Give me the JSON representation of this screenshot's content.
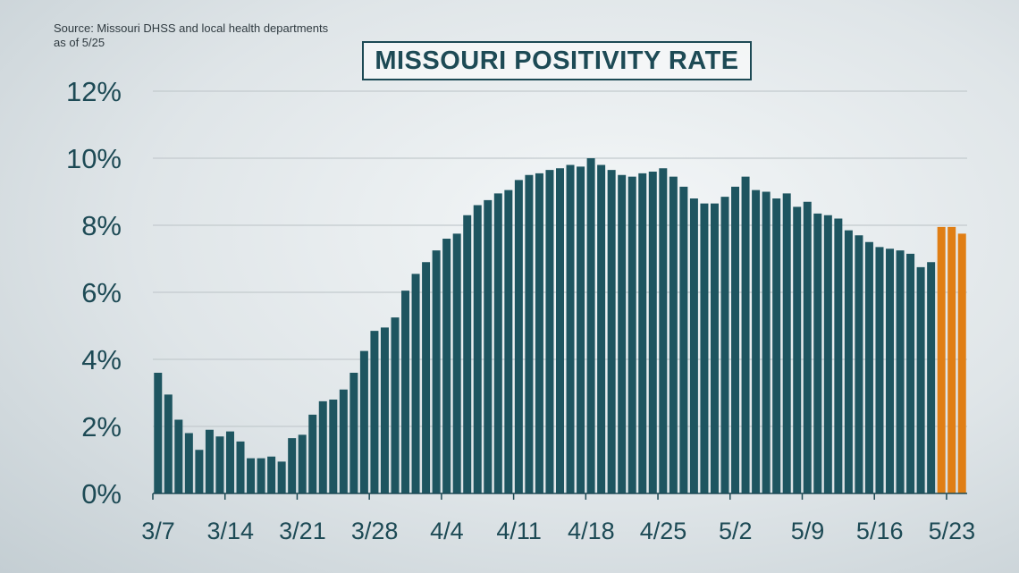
{
  "source": {
    "line1": "Source: Missouri DHSS and local health departments",
    "line2": "as of 5/25"
  },
  "chart_data": {
    "type": "bar",
    "title": "MISSOURI POSITIVITY RATE",
    "xlabel": "",
    "ylabel": "",
    "ylim": [
      0,
      12
    ],
    "y_ticks": [
      "0%",
      "2%",
      "4%",
      "6%",
      "8%",
      "10%",
      "12%"
    ],
    "y_tick_values": [
      0,
      2,
      4,
      6,
      8,
      10,
      12
    ],
    "x_tick_labels": [
      "3/7",
      "3/14",
      "3/21",
      "3/28",
      "4/4",
      "4/11",
      "4/18",
      "4/25",
      "5/2",
      "5/9",
      "5/16",
      "5/23"
    ],
    "x_tick_indices": [
      0,
      7,
      14,
      21,
      28,
      35,
      42,
      49,
      56,
      63,
      70,
      77
    ],
    "grid": true,
    "colors": {
      "final": "#1e5560",
      "preliminary": "#e07e14",
      "grid": "#c3cacd",
      "axis": "#1d4a55"
    },
    "series": [
      {
        "name": "",
        "values": [
          3.6,
          2.95,
          2.2,
          1.8,
          1.3,
          1.9,
          1.7,
          1.85,
          1.55,
          1.05,
          1.05,
          1.1,
          0.95,
          1.65,
          1.75,
          2.35,
          2.75,
          2.8,
          3.1,
          3.6,
          4.25,
          4.85,
          4.95,
          5.25,
          6.05,
          6.55,
          6.9,
          7.25,
          7.6,
          7.75,
          8.3,
          8.6,
          8.75,
          8.95,
          9.05,
          9.35,
          9.5,
          9.55,
          9.65,
          9.7,
          9.8,
          9.75,
          10.0,
          9.8,
          9.65,
          9.5,
          9.45,
          9.55,
          9.6,
          9.7,
          9.45,
          9.15,
          8.8,
          8.65,
          8.65,
          8.85,
          9.15,
          9.45,
          9.05,
          9.0,
          8.8,
          8.95,
          8.55,
          8.7,
          8.35,
          8.3,
          8.2,
          7.85,
          7.7,
          7.5,
          7.35,
          7.3,
          7.25,
          7.15,
          6.75,
          6.9,
          7.95,
          7.95,
          7.75
        ]
      }
    ],
    "preliminary_from_index": 76
  }
}
